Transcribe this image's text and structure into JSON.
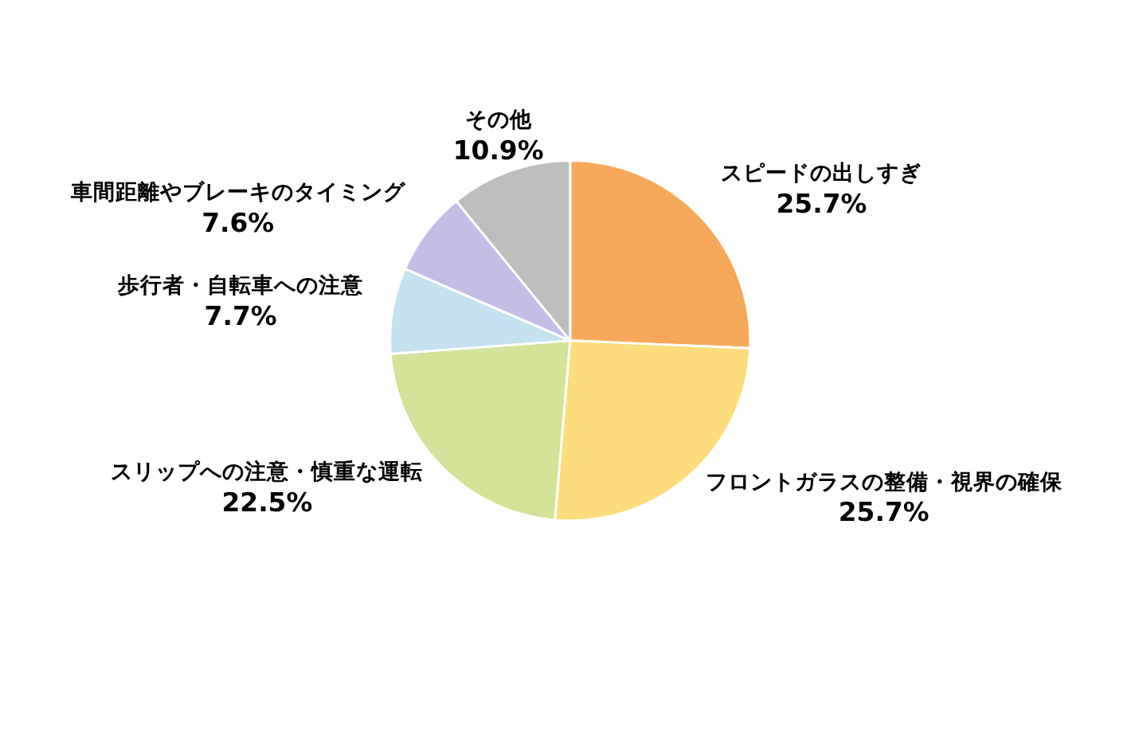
{
  "chart_data": {
    "type": "pie",
    "categories": [
      "スピードの出しすぎ",
      "フロントガラスの整備・視界の確保",
      "スリップへの注意・慎重な運転",
      "歩行者・自転車への注意",
      "車間距離やブレーキのタイミング",
      "その他"
    ],
    "values": [
      25.7,
      25.7,
      22.5,
      7.7,
      7.6,
      10.9
    ],
    "value_labels": [
      "25.7%",
      "25.7%",
      "22.5%",
      "7.7%",
      "7.6%",
      "10.9%"
    ],
    "colors": [
      "#f7a85a",
      "#fcdc7c",
      "#d3e39a",
      "#c4e2ef",
      "#c3bde6",
      "#bdbdbd"
    ]
  }
}
